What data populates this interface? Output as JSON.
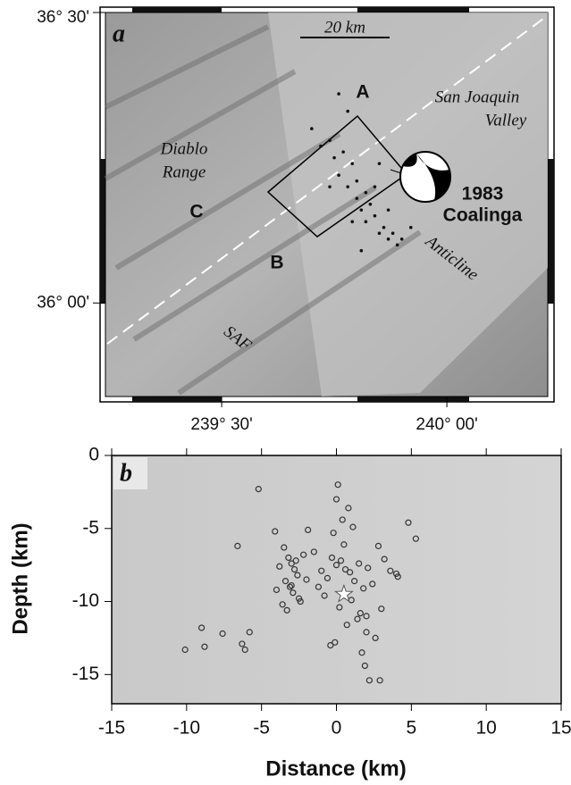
{
  "chart_data": [
    {
      "type": "map",
      "panel_label": "a",
      "scale_label": "20 km",
      "annotations": [
        "A",
        "B",
        "C",
        "San Joaquin",
        "Valley",
        "Diablo",
        "Range",
        "1983",
        "Coalinga",
        "Anticline",
        "SAF"
      ],
      "xlim": [
        239.242,
        240.224
      ],
      "ylim": [
        35.839,
        36.5
      ],
      "xticks": [
        {
          "value": 239.5,
          "label": "239° 30'"
        },
        {
          "value": 240,
          "label": "240° 00'"
        }
      ],
      "yticks": [
        {
          "value": 36,
          "label": "36° 00'"
        },
        {
          "value": 36.5,
          "label": "36° 30'"
        }
      ],
      "x": [
        239.7,
        239.72,
        239.74,
        239.75,
        239.76,
        239.77,
        239.78,
        239.79,
        239.8,
        239.8,
        239.81,
        239.82,
        239.82,
        239.83,
        239.84,
        239.85,
        239.86,
        239.87,
        239.88,
        239.89,
        239.9,
        239.78,
        239.76,
        239.81,
        239.84,
        239.87,
        239.74,
        239.92,
        239.85,
        239.79
      ],
      "y": [
        36.3,
        36.27,
        36.28,
        36.25,
        36.22,
        36.26,
        36.2,
        36.24,
        36.18,
        36.21,
        36.16,
        36.19,
        36.14,
        36.17,
        36.15,
        36.12,
        36.13,
        36.11,
        36.12,
        36.1,
        36.11,
        36.33,
        36.36,
        36.09,
        36.2,
        36.16,
        36.2,
        36.13,
        36.24,
        36.14
      ],
      "color": "#111111"
    },
    {
      "type": "scatter",
      "panel_label": "b",
      "xlabel": "Distance (km)",
      "ylabel": "Depth (km)",
      "xlim": [
        -15,
        15
      ],
      "ylim": [
        -17,
        0
      ],
      "xticks": [
        -15,
        -10,
        -5,
        0,
        5,
        10,
        15
      ],
      "yticks": [
        0,
        -5,
        -10,
        -15
      ],
      "x": [
        -5.2,
        -4.1,
        -3.5,
        -3.2,
        -3.0,
        -2.8,
        -2.6,
        -3.4,
        -3.1,
        -2.9,
        -2.5,
        -3.6,
        -2.2,
        -3.3,
        -2.7,
        -3.0,
        -2.4,
        -3.8,
        -4.0,
        -2.0,
        -1.5,
        -1.0,
        -0.6,
        -0.3,
        0.0,
        0.3,
        0.6,
        0.9,
        1.2,
        1.5,
        1.8,
        2.1,
        -0.2,
        0.4,
        0.8,
        1.1,
        -0.8,
        0.2,
        1.4,
        2.4,
        2.8,
        3.2,
        3.6,
        4.1,
        4.8,
        5.3,
        0.1,
        0.5,
        1.0,
        1.6,
        2.0,
        -0.4,
        0.7,
        -1.2,
        1.9,
        2.2,
        -10.1,
        -9.0,
        -8.8,
        -7.6,
        -6.3,
        -6.1,
        -5.8,
        -6.6,
        0.0,
        -0.1,
        2.0,
        2.6,
        2.9,
        1.7,
        -1.9,
        3.0,
        4.0
      ],
      "y": [
        -2.3,
        -5.2,
        -6.3,
        -7.0,
        -7.4,
        -7.8,
        -8.2,
        -8.6,
        -9.0,
        -9.4,
        -9.8,
        -10.2,
        -6.8,
        -10.6,
        -7.2,
        -8.9,
        -10.0,
        -7.6,
        -9.2,
        -8.5,
        -6.6,
        -7.9,
        -8.4,
        -7.0,
        -7.5,
        -7.2,
        -7.8,
        -8.0,
        -8.6,
        -7.4,
        -9.1,
        -7.7,
        -5.3,
        -4.4,
        -3.6,
        -4.9,
        -9.6,
        -10.4,
        -11.2,
        -8.8,
        -6.2,
        -7.1,
        -7.9,
        -8.3,
        -4.6,
        -5.7,
        -2.0,
        -6.1,
        -9.9,
        -10.8,
        -12.1,
        -13.0,
        -11.6,
        -9.0,
        -14.4,
        -15.4,
        -13.3,
        -11.8,
        -13.1,
        -12.2,
        -12.9,
        -13.3,
        -12.1,
        -6.2,
        -3.0,
        -12.8,
        -11.0,
        -12.5,
        -15.4,
        -13.5,
        -5.1,
        -10.5,
        -8.1
      ],
      "mainshock": {
        "x": 0.5,
        "y": -9.5
      },
      "color": "#333333"
    }
  ]
}
